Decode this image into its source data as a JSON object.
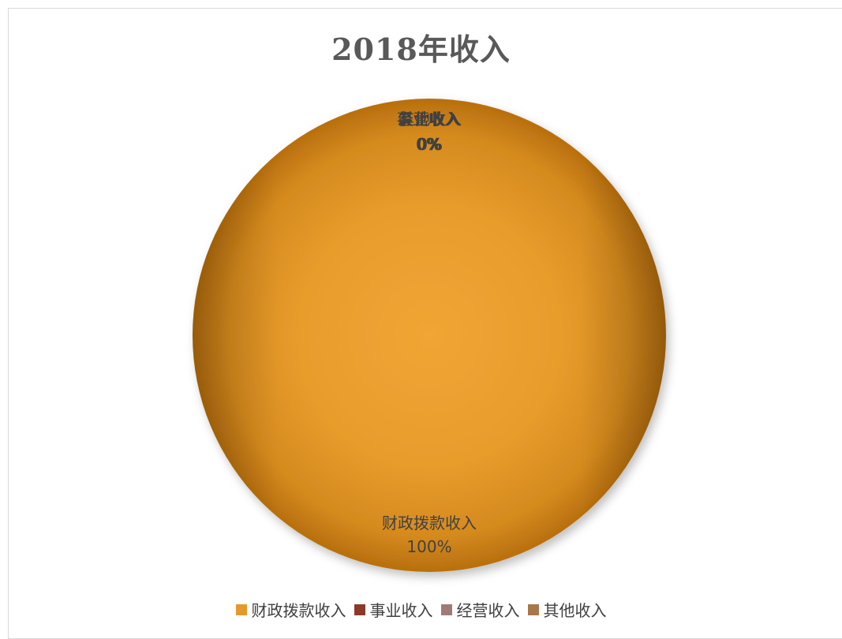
{
  "chart_data": {
    "type": "pie",
    "title": "2018年收入",
    "categories": [
      "财政拨款收入",
      "事业收入",
      "经营收入",
      "其他收入"
    ],
    "values": [
      100,
      0,
      0,
      0
    ],
    "data_labels": [
      {
        "name": "财政拨款收入",
        "percent": "100%"
      },
      {
        "name": "事业收入",
        "percent": "0%"
      },
      {
        "name": "经营收入",
        "percent": "0%"
      },
      {
        "name": "其他收入",
        "percent": "0%"
      }
    ],
    "colors": [
      "#e49a2a",
      "#8b3a2a",
      "#a07a78",
      "#a8784a"
    ],
    "legend_position": "bottom"
  }
}
